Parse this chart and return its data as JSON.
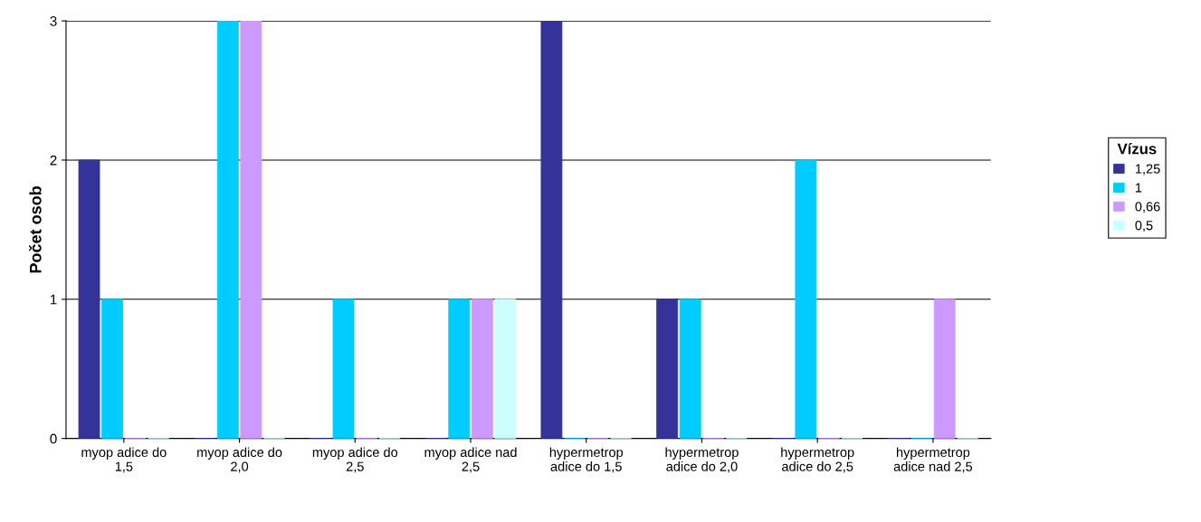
{
  "chart_data": {
    "type": "bar",
    "ylabel": "Počet osob",
    "legend_title": "Vízus",
    "categories": [
      "myop adice do\n1,5",
      "myop adice do\n2,0",
      "myop adice do\n2,5",
      "myop adice nad\n2,5",
      "hypermetrop\nadice do 1,5",
      "hypermetrop\nadice do 2,0",
      "hypermetrop\nadice do 2,5",
      "hypermetrop\nadice nad 2,5"
    ],
    "series": [
      {
        "name": "1,25",
        "color": "#333399",
        "values": [
          2,
          0,
          0,
          0,
          3,
          1,
          0,
          0
        ]
      },
      {
        "name": "1",
        "color": "#00ccff",
        "values": [
          1,
          3,
          1,
          1,
          0,
          1,
          2,
          0
        ]
      },
      {
        "name": "0,66",
        "color": "#cc99ff",
        "values": [
          0,
          3,
          0,
          1,
          0,
          0,
          0,
          1
        ]
      },
      {
        "name": "0,5",
        "color": "#ccffff",
        "values": [
          0,
          0,
          0,
          1,
          0,
          0,
          0,
          0
        ]
      }
    ],
    "ylim": [
      0,
      3
    ],
    "yticks": [
      0,
      1,
      2,
      3
    ],
    "grid": "y",
    "legend": "right"
  }
}
